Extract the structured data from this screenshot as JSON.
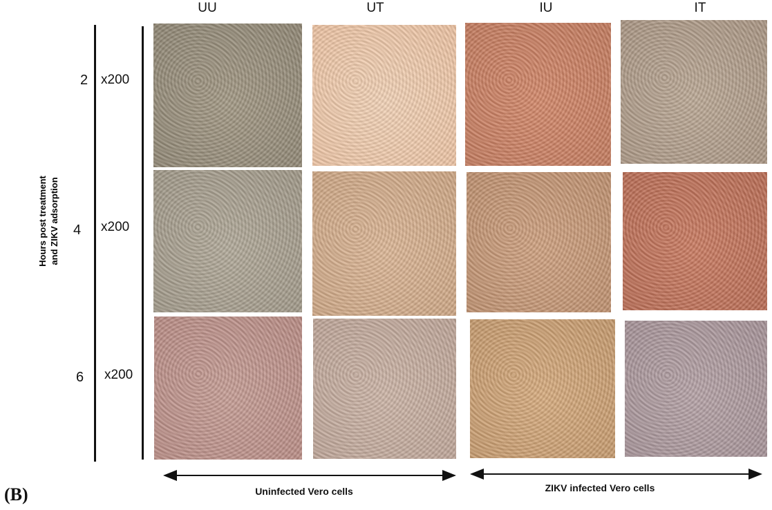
{
  "panel_label": "(B)",
  "columns": [
    "UU",
    "UT",
    "IU",
    "IT"
  ],
  "rows": [
    {
      "label": "2",
      "magnification": "x200"
    },
    {
      "label": "4",
      "magnification": "x200"
    },
    {
      "label": "6",
      "magnification": "x200"
    }
  ],
  "y_axis_label": [
    "Hours post treatment",
    "and ZIKV adsorption"
  ],
  "groups": [
    "Uninfected Vero cells",
    "ZIKV infected Vero cells"
  ]
}
